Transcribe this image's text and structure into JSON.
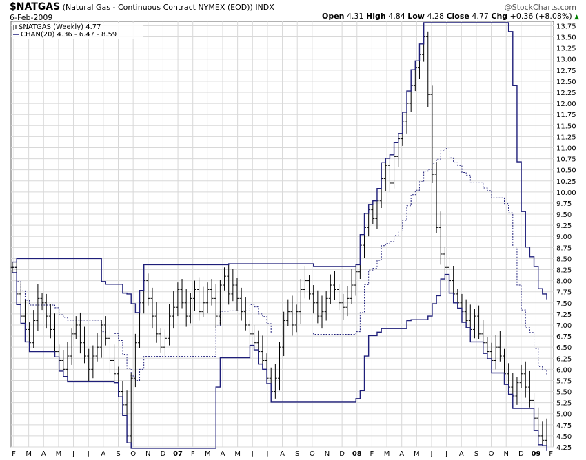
{
  "header": {
    "symbol": "$NATGAS",
    "description": "(Natural Gas - Continuous Contract NYMEX (EOD))",
    "exchange": "INDX",
    "date": "6-Feb-2009",
    "watermark": "@StockCharts.com",
    "quote": {
      "open_label": "Open",
      "open": "4.31",
      "high_label": "High",
      "high": "4.84",
      "low_label": "Low",
      "low": "4.28",
      "close_label": "Close",
      "close": "4.77",
      "chg_label": "Chg",
      "chg": "+0.36 (+8.08%)",
      "chg_arrow": "▲"
    }
  },
  "legend": {
    "series1": "$NATGAS (Weekly) 4.77",
    "series2": "CHAN(20) 4.36 - 6.47 - 8.59"
  },
  "colors": {
    "upper": "#1f1f7a",
    "lower": "#1f1f7a",
    "mid": "#1f1f7a",
    "bars": "#000000",
    "grid": "#d8d8d8",
    "up_arrow": "#008000"
  },
  "chart_data": {
    "type": "line",
    "title": "$NATGAS",
    "interval": "weekly",
    "ylim": [
      4.25,
      13.85
    ],
    "y_ticks": [
      4.25,
      4.5,
      4.75,
      5.0,
      5.25,
      5.5,
      5.75,
      6.0,
      6.25,
      6.5,
      6.75,
      7.0,
      7.25,
      7.5,
      7.75,
      8.0,
      8.25,
      8.5,
      8.75,
      9.0,
      9.25,
      9.5,
      9.75,
      10.0,
      10.25,
      10.5,
      10.75,
      11.0,
      11.25,
      11.5,
      11.75,
      12.0,
      12.25,
      12.5,
      12.75,
      13.0,
      13.25,
      13.5,
      13.75
    ],
    "x_labels": [
      "F",
      "M",
      "A",
      "M",
      "J",
      "J",
      "A",
      "S",
      "O",
      "N",
      "D",
      "07",
      "F",
      "M",
      "A",
      "M",
      "J",
      "J",
      "A",
      "S",
      "O",
      "N",
      "D",
      "08",
      "F",
      "M",
      "A",
      "M",
      "J",
      "J",
      "A",
      "S",
      "O",
      "N",
      "D",
      "09",
      "F"
    ],
    "close_series": [
      8.3,
      7.7,
      7.2,
      6.9,
      6.6,
      7.1,
      7.6,
      7.5,
      7.2,
      6.9,
      6.4,
      6.2,
      6.0,
      6.3,
      6.8,
      7.0,
      6.6,
      6.3,
      6.0,
      6.3,
      6.5,
      7.0,
      6.7,
      6.2,
      5.9,
      5.5,
      5.2,
      4.5,
      5.8,
      6.6,
      7.5,
      8.0,
      7.6,
      7.2,
      6.8,
      6.5,
      6.7,
      7.2,
      7.4,
      7.8,
      7.5,
      7.2,
      7.6,
      7.8,
      7.3,
      7.5,
      7.8,
      7.6,
      7.2,
      7.9,
      8.1,
      7.7,
      7.9,
      7.6,
      7.3,
      7.0,
      6.8,
      6.6,
      6.4,
      6.2,
      5.8,
      5.5,
      5.8,
      6.5,
      7.1,
      7.3,
      7.0,
      7.3,
      7.8,
      8.0,
      7.7,
      7.5,
      7.2,
      7.3,
      7.6,
      7.9,
      7.8,
      7.5,
      7.4,
      7.6,
      7.9,
      8.2,
      8.8,
      9.2,
      9.6,
      9.4,
      9.8,
      10.3,
      10.6,
      10.2,
      10.8,
      11.2,
      11.6,
      12.0,
      12.4,
      12.8,
      13.1,
      13.5,
      12.2,
      10.4,
      9.2,
      8.6,
      8.3,
      8.0,
      7.7,
      7.5,
      7.3,
      7.1,
      6.9,
      7.2,
      6.8,
      6.6,
      6.4,
      6.2,
      6.5,
      6.3,
      5.9,
      5.6,
      5.4,
      5.7,
      5.9,
      5.6,
      5.3,
      4.9,
      4.5,
      4.4,
      4.77
    ],
    "series": [
      {
        "name": "CHAN(20) upper"
      },
      {
        "name": "CHAN(20) mid"
      },
      {
        "name": "CHAN(20) lower"
      }
    ],
    "last_values": {
      "lower": 4.36,
      "mid": 6.47,
      "upper": 8.59
    }
  }
}
